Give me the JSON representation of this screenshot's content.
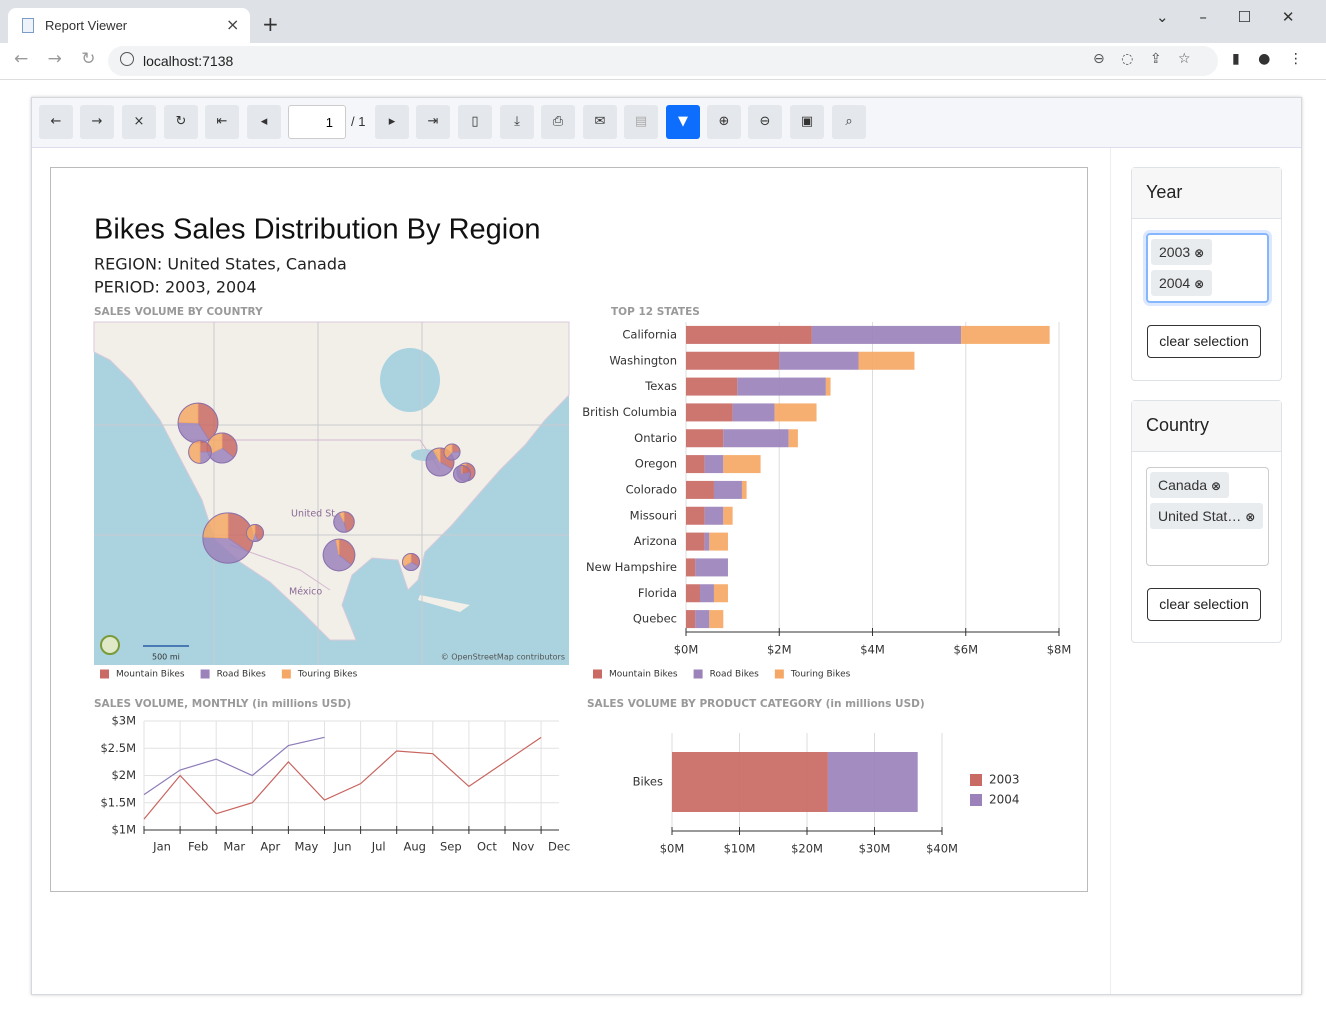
{
  "browser": {
    "tab_title": "Report Viewer",
    "url": "localhost:7138"
  },
  "toolbar": {
    "page": "1",
    "page_total": "/ 1"
  },
  "report": {
    "title": "Bikes Sales Distribution By Region",
    "region": "REGION: United States, Canada",
    "period": "PERIOD: 2003, 2004"
  },
  "map": {
    "title": "SALES VOLUME BY COUNTRY",
    "labels": [
      "United St",
      "México"
    ],
    "scale": "500 mi",
    "attribution": "© OpenStreetMap contributors"
  },
  "states_chart": {
    "type": "bar",
    "orientation": "horizontal",
    "stacked": true,
    "grid": true,
    "title": "TOP 12 STATES",
    "categories": [
      "California",
      "Washington",
      "Texas",
      "British Columbia",
      "Ontario",
      "Oregon",
      "Colorado",
      "Missouri",
      "Arizona",
      "New Hampshire",
      "Florida",
      "Quebec"
    ],
    "series": [
      {
        "name": "Mountain Bikes",
        "color": "#c96a64",
        "values": [
          2.7,
          2.0,
          1.1,
          1.0,
          0.8,
          0.4,
          0.6,
          0.4,
          0.4,
          0.2,
          0.3,
          0.2
        ]
      },
      {
        "name": "Road Bikes",
        "color": "#9b82bb",
        "values": [
          3.2,
          1.7,
          1.9,
          0.9,
          1.4,
          0.4,
          0.6,
          0.4,
          0.1,
          0.7,
          0.3,
          0.3
        ]
      },
      {
        "name": "Touring Bikes",
        "color": "#f5a865",
        "values": [
          1.9,
          1.2,
          0.1,
          0.9,
          0.2,
          0.8,
          0.1,
          0.2,
          0.4,
          0,
          0.3,
          0.3
        ]
      }
    ],
    "xlim": [
      0,
      8
    ],
    "xticks": [
      {
        "value": 0,
        "label": "$0M"
      },
      {
        "value": 2,
        "label": "$2M"
      },
      {
        "value": 4,
        "label": "$4M"
      },
      {
        "value": 6,
        "label": "$6M"
      },
      {
        "value": 8,
        "label": "$8M"
      }
    ]
  },
  "monthly_chart": {
    "type": "line",
    "grid": true,
    "title": "SALES VOLUME, MONTHLY (in millions USD)",
    "categories": [
      "Jan",
      "Feb",
      "Mar",
      "Apr",
      "May",
      "Jun",
      "Jul",
      "Aug",
      "Sep",
      "Oct",
      "Nov",
      "Dec"
    ],
    "series": [
      {
        "color": "#c8645e",
        "values": [
          1.2,
          2.0,
          1.3,
          1.5,
          2.25,
          1.55,
          1.85,
          2.45,
          2.4,
          1.8,
          2.25,
          2.7
        ]
      },
      {
        "color": "#8c7bb8",
        "values": [
          1.65,
          2.1,
          2.3,
          2.0,
          2.55,
          2.7,
          null,
          null,
          null,
          null,
          null,
          null
        ]
      }
    ],
    "ylim": [
      1,
      3
    ],
    "yticks": [
      {
        "value": 1,
        "label": "$1M"
      },
      {
        "value": 1.5,
        "label": "$1.5M"
      },
      {
        "value": 2,
        "label": "$2M"
      },
      {
        "value": 2.5,
        "label": "$2.5M"
      },
      {
        "value": 3,
        "label": "$3M"
      }
    ]
  },
  "category_chart": {
    "type": "bar",
    "orientation": "horizontal",
    "stacked": true,
    "grid": true,
    "title": "SALES VOLUME BY PRODUCT CATEGORY (in millions USD)",
    "categories": [
      "Bikes"
    ],
    "series": [
      {
        "name": "2003",
        "color": "#c96a64",
        "values": [
          23.1
        ]
      },
      {
        "name": "2004",
        "color": "#9b82bb",
        "values": [
          13.3
        ]
      }
    ],
    "xlim": [
      0,
      40
    ],
    "xticks": [
      {
        "value": 0,
        "label": "$0M"
      },
      {
        "value": 10,
        "label": "$10M"
      },
      {
        "value": 20,
        "label": "$20M"
      },
      {
        "value": 30,
        "label": "$30M"
      },
      {
        "value": 40,
        "label": "$40M"
      }
    ]
  },
  "filters": [
    {
      "title": "Year",
      "chips": [
        "2003",
        "2004"
      ],
      "button": "clear selection"
    },
    {
      "title": "Country",
      "chips": [
        "Canada",
        "United Stat…"
      ],
      "button": "clear selection"
    }
  ]
}
